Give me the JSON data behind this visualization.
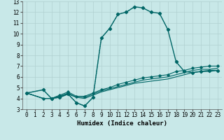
{
  "xlabel": "Humidex (Indice chaleur)",
  "ylabel": "",
  "xlim": [
    -0.5,
    23.5
  ],
  "ylim": [
    3,
    13
  ],
  "xticks": [
    0,
    1,
    2,
    3,
    4,
    5,
    6,
    7,
    8,
    9,
    10,
    11,
    12,
    13,
    14,
    15,
    16,
    17,
    18,
    19,
    20,
    21,
    22,
    23
  ],
  "yticks": [
    3,
    4,
    5,
    6,
    7,
    8,
    9,
    10,
    11,
    12,
    13
  ],
  "bg_color": "#c8e8e8",
  "line_color": "#006666",
  "line1_x": [
    0,
    2,
    3,
    4,
    5,
    6,
    7,
    8,
    9,
    10,
    11,
    12,
    13,
    14,
    15,
    16,
    17,
    18,
    19,
    20,
    21,
    22,
    23
  ],
  "line1_y": [
    4.5,
    4.8,
    4.0,
    4.1,
    4.4,
    3.6,
    3.3,
    4.1,
    9.6,
    10.5,
    11.8,
    12.0,
    12.5,
    12.4,
    12.0,
    11.9,
    10.4,
    7.4,
    6.5,
    6.4,
    6.5,
    6.6,
    6.6
  ],
  "line2_x": [
    0,
    2,
    3,
    4,
    5,
    6,
    7,
    8,
    9,
    10,
    11,
    12,
    13,
    14,
    15,
    16,
    17,
    18,
    19,
    20,
    21,
    22,
    23
  ],
  "line2_y": [
    4.5,
    4.0,
    4.0,
    4.2,
    4.4,
    4.1,
    4.0,
    4.3,
    4.6,
    4.8,
    5.0,
    5.2,
    5.4,
    5.5,
    5.6,
    5.7,
    5.8,
    6.0,
    6.2,
    6.4,
    6.5,
    6.5,
    6.6
  ],
  "line3_x": [
    0,
    2,
    3,
    4,
    5,
    6,
    7,
    8,
    9,
    10,
    11,
    12,
    13,
    14,
    15,
    16,
    17,
    18,
    19,
    20,
    21,
    22,
    23
  ],
  "line3_y": [
    4.5,
    4.0,
    4.0,
    4.2,
    4.5,
    4.1,
    4.1,
    4.4,
    4.7,
    4.9,
    5.1,
    5.3,
    5.5,
    5.7,
    5.8,
    5.9,
    6.0,
    6.2,
    6.4,
    6.6,
    6.7,
    6.7,
    6.8
  ],
  "line4_x": [
    0,
    2,
    3,
    4,
    5,
    6,
    7,
    8,
    9,
    10,
    11,
    12,
    13,
    14,
    15,
    16,
    17,
    18,
    19,
    20,
    21,
    22,
    23
  ],
  "line4_y": [
    4.5,
    4.0,
    4.0,
    4.3,
    4.6,
    4.2,
    4.2,
    4.5,
    4.8,
    5.0,
    5.3,
    5.5,
    5.7,
    5.9,
    6.0,
    6.1,
    6.2,
    6.5,
    6.6,
    6.8,
    6.9,
    7.0,
    7.0
  ],
  "dotted_x": [
    0,
    2,
    3,
    4,
    5,
    6,
    7,
    8,
    9,
    10,
    11,
    12,
    13
  ],
  "dotted_y": [
    4.5,
    4.8,
    4.0,
    4.1,
    4.4,
    3.6,
    3.3,
    4.1,
    9.6,
    10.5,
    11.8,
    12.0,
    12.5
  ],
  "tick_fontsize": 5.5,
  "label_fontsize": 6.5,
  "grid_color": "#b0d0d0"
}
